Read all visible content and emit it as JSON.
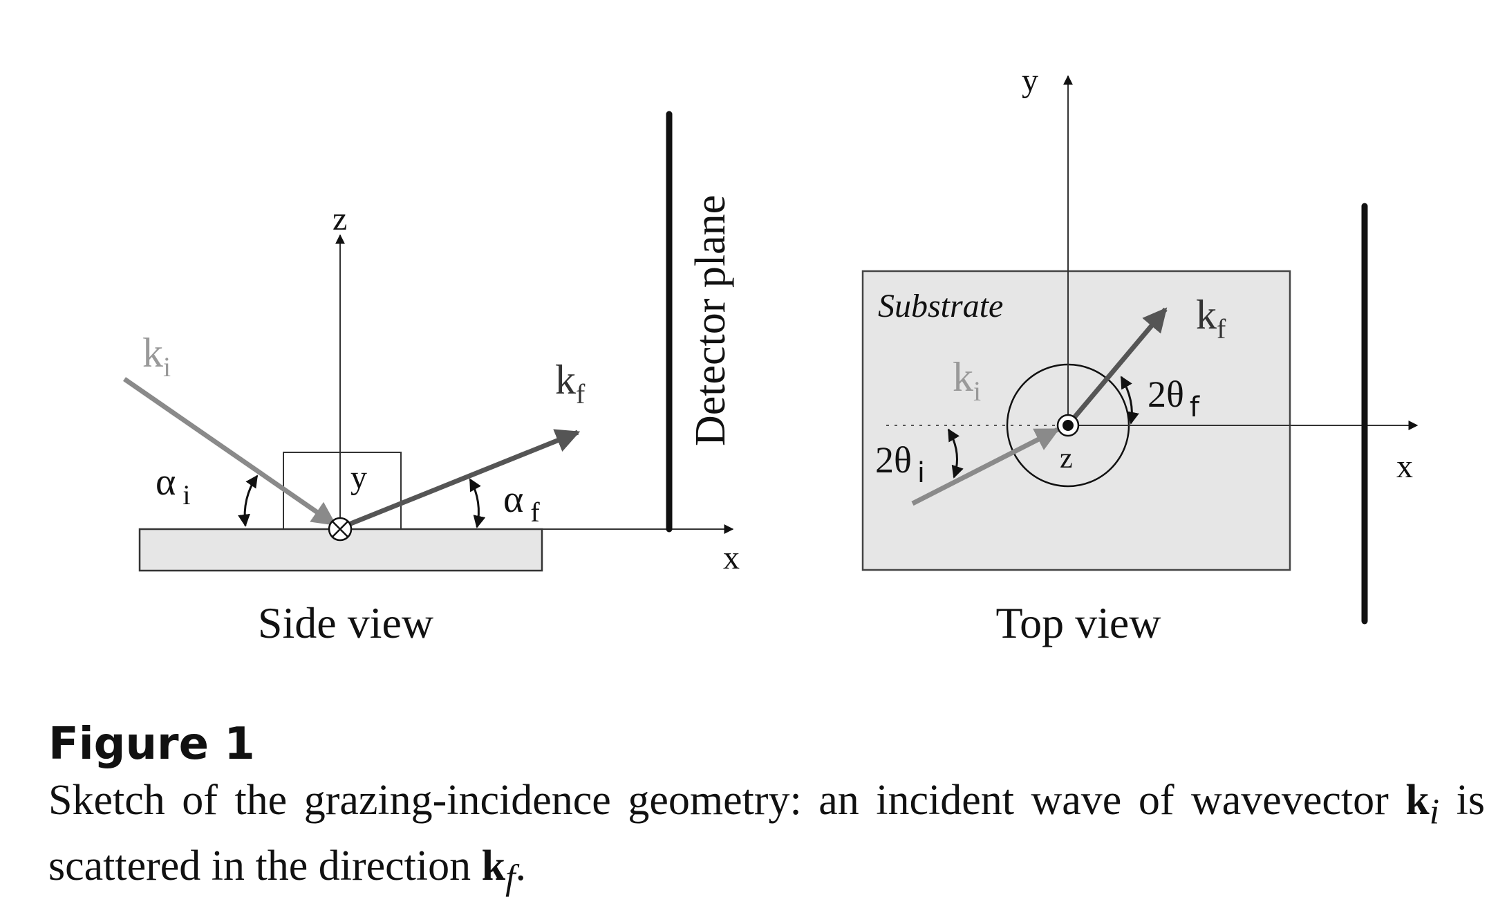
{
  "side_view": {
    "axis_z": "z",
    "axis_x": "x",
    "axis_y": "y",
    "ki_label": "k",
    "ki_sub": "i",
    "kf_label": "k",
    "kf_sub": "f",
    "alpha_i": "α",
    "alpha_i_sub": "i",
    "alpha_f": "α",
    "alpha_f_sub": "f",
    "detector": "Detector plane",
    "title": "Side view"
  },
  "top_view": {
    "axis_y": "y",
    "axis_x": "x",
    "axis_z": "z",
    "substrate": "Substrate",
    "ki_label": "k",
    "ki_sub": "i",
    "kf_label": "k",
    "kf_sub": "f",
    "theta_i": "2θ",
    "theta_i_sub": "i",
    "theta_f": "2θ",
    "theta_f_sub": "f",
    "title": "Top view"
  },
  "caption": {
    "number": "Figure 1",
    "text_1": "Sketch of the grazing-incidence geometry: an incident wave of wavevector ",
    "k_bold": "k",
    "ki_sub": "i",
    "text_2": " is scattered in the direction ",
    "kf_sub": "f",
    "text_3": "."
  },
  "colors": {
    "ink": "#111111",
    "gray_arrow": "#8a8a8a",
    "dark_arrow": "#555555",
    "substrate_fill": "#e6e6e6",
    "gray_text": "#999999"
  }
}
